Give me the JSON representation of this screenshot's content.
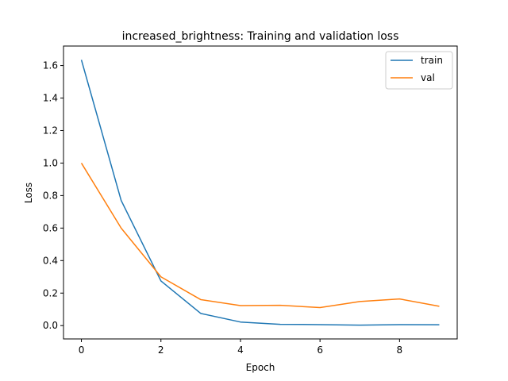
{
  "chart_data": {
    "type": "line",
    "title": "increased_brightness: Training and validation loss",
    "xlabel": "Epoch",
    "ylabel": "Loss",
    "xlim": [
      -0.45,
      9.45
    ],
    "ylim": [
      -0.082,
      1.72
    ],
    "xticks": [
      0,
      2,
      4,
      6,
      8
    ],
    "xtick_labels": [
      "0",
      "2",
      "4",
      "6",
      "8"
    ],
    "yticks": [
      0.0,
      0.2,
      0.4,
      0.6,
      0.8,
      1.0,
      1.2,
      1.4,
      1.6
    ],
    "ytick_labels": [
      "0.0",
      "0.2",
      "0.4",
      "0.6",
      "0.8",
      "1.0",
      "1.2",
      "1.4",
      "1.6"
    ],
    "grid": false,
    "legend_position": "top-right",
    "x": [
      0,
      1,
      2,
      3,
      4,
      5,
      6,
      7,
      8,
      9
    ],
    "series": [
      {
        "name": "train",
        "color": "#1f77b4",
        "values": [
          1.635,
          0.77,
          0.275,
          0.075,
          0.022,
          0.008,
          0.006,
          0.003,
          0.006,
          0.005
        ]
      },
      {
        "name": "val",
        "color": "#ff7f0e",
        "values": [
          1.0,
          0.6,
          0.3,
          0.16,
          0.123,
          0.125,
          0.111,
          0.148,
          0.164,
          0.119
        ]
      }
    ]
  }
}
